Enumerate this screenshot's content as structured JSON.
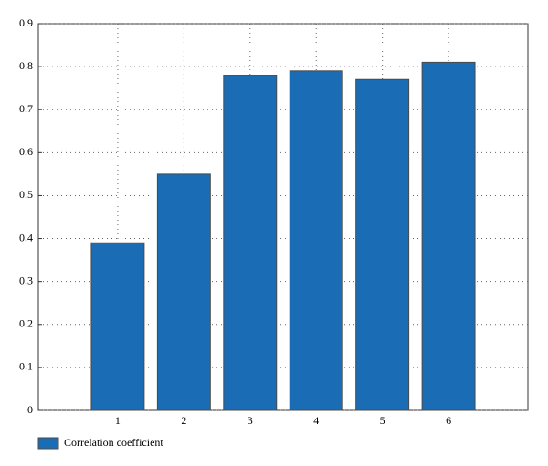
{
  "chart_data": {
    "type": "bar",
    "x": [
      1,
      2,
      3,
      4,
      5,
      6
    ],
    "series": [
      {
        "name": "Correlation coefficient",
        "color": "#1a6db5",
        "values": [
          0.39,
          0.55,
          0.78,
          0.79,
          0.77,
          0.81
        ]
      }
    ],
    "xlim": [
      -0.2,
      7.2
    ],
    "xticks": [
      1,
      2,
      3,
      4,
      5,
      6
    ],
    "ylim": [
      0,
      0.9
    ],
    "yticks": [
      0,
      0.1,
      0.2,
      0.3,
      0.4,
      0.5,
      0.6,
      0.7,
      0.8,
      0.9
    ],
    "grid": true,
    "legend": "bottom-left"
  }
}
